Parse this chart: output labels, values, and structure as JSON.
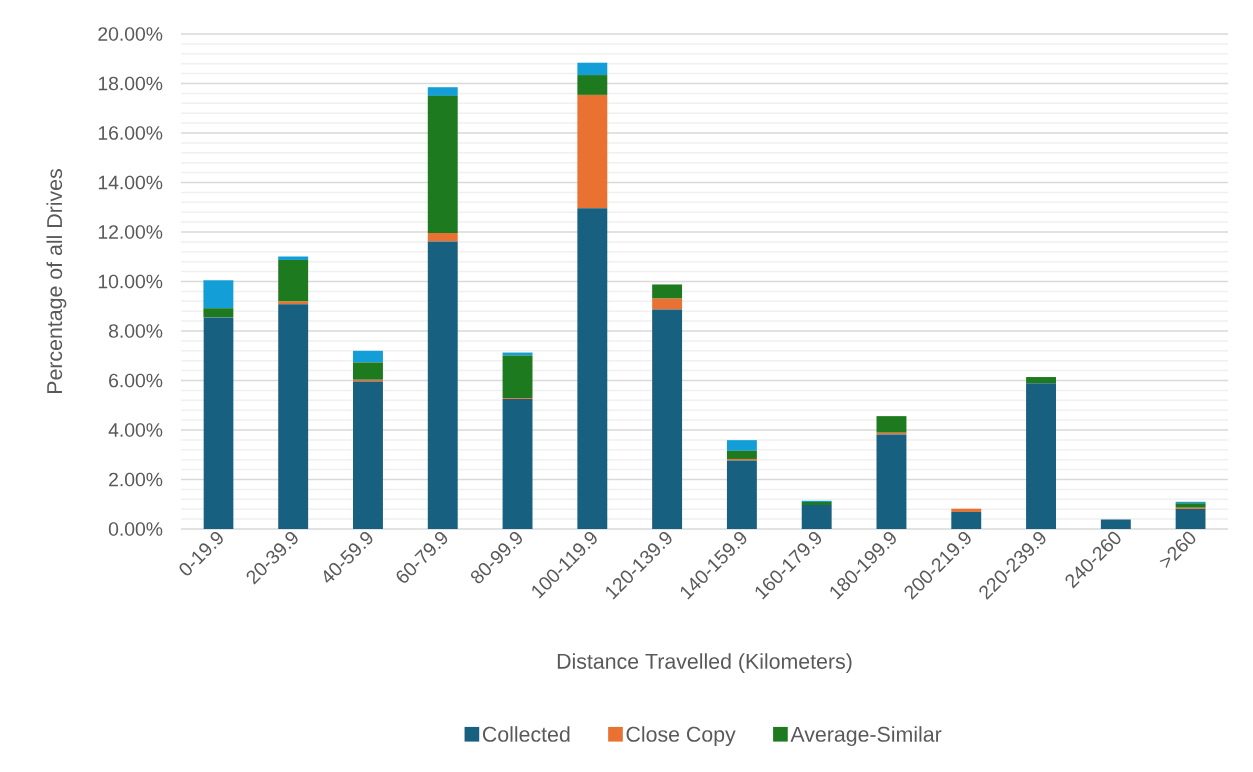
{
  "chart_data": {
    "type": "bar",
    "stacked": true,
    "xlabel": "Distance Travelled (Kilometers)",
    "ylabel": "Percentage of all Drives",
    "categories": [
      "0-19.9",
      "20-39.9",
      "40-59.9",
      "60-79.9",
      "80-99.9",
      "100-119.9",
      "120-139.9",
      "140-159.9",
      "160-179.9",
      "180-199.9",
      "200-219.9",
      "220-239.9",
      "240-260",
      ">260"
    ],
    "ylim": [
      0,
      20
    ],
    "yticks": [
      {
        "value": 0,
        "label": "0.00%"
      },
      {
        "value": 2,
        "label": "2.00%"
      },
      {
        "value": 4,
        "label": "4.00%"
      },
      {
        "value": 6,
        "label": "6.00%"
      },
      {
        "value": 8,
        "label": "8.00%"
      },
      {
        "value": 10,
        "label": "10.00%"
      },
      {
        "value": 12,
        "label": "12.00%"
      },
      {
        "value": 14,
        "label": "14.00%"
      },
      {
        "value": 16,
        "label": "16.00%"
      },
      {
        "value": 18,
        "label": "18.00%"
      },
      {
        "value": 20,
        "label": "20.00%"
      }
    ],
    "grid": "y",
    "legend": "bottom",
    "series": [
      {
        "name": "Collected",
        "color": "#17607f",
        "values": [
          8.55,
          9.08,
          5.96,
          11.62,
          5.25,
          12.96,
          8.87,
          2.77,
          0.97,
          3.82,
          0.69,
          5.89,
          0.38,
          0.81
        ]
      },
      {
        "name": "Close Copy",
        "color": "#e97132",
        "values": [
          0,
          0.11,
          0.07,
          0.34,
          0.04,
          4.58,
          0.44,
          0.06,
          0,
          0.07,
          0.13,
          0,
          0,
          0.05
        ]
      },
      {
        "name": "Average-Similar",
        "color": "#1e7a1e",
        "values": [
          0.37,
          1.68,
          0.7,
          5.54,
          1.72,
          0.8,
          0.57,
          0.33,
          0.12,
          0.67,
          0,
          0.25,
          0,
          0.18
        ]
      },
      {
        "color": "#139ed8",
        "values": [
          1.13,
          0.14,
          0.47,
          0.35,
          0.12,
          0.5,
          0,
          0.43,
          0.05,
          0,
          0,
          0,
          0,
          0.06
        ]
      }
    ]
  }
}
